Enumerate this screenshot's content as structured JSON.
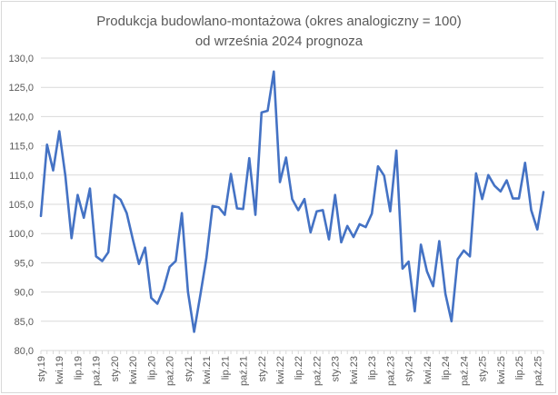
{
  "chart_data": {
    "type": "line",
    "title": "Produkcja budowlano-montażowa (okres analogiczny = 100)",
    "subtitle": "od września 2024 prognoza",
    "xlabel": "",
    "ylabel": "",
    "ylim": [
      80,
      130
    ],
    "yticks": [
      "80,0",
      "85,0",
      "90,0",
      "95,0",
      "100,0",
      "105,0",
      "110,0",
      "115,0",
      "120,0",
      "125,0",
      "130,0"
    ],
    "grid": true,
    "legend": "none",
    "x_start": "2019-01",
    "x_end": "2025-12",
    "xtick_labels": [
      "sty.19",
      "kwi.19",
      "lip.19",
      "paź.19",
      "sty.20",
      "kwi.20",
      "lip.20",
      "paź.20",
      "sty.21",
      "kwi.21",
      "lip.21",
      "paź.21",
      "sty.22",
      "kwi.22",
      "lip.22",
      "paź.22",
      "sty.23",
      "kwi.23",
      "lip.23",
      "paź.23",
      "sty.24",
      "kwi.24",
      "lip.24",
      "paź.24",
      "sty.25",
      "kwi.25",
      "lip.25",
      "paź.25"
    ],
    "series": [
      {
        "color": "#4472c4",
        "values": [
          103.0,
          115.2,
          110.8,
          117.5,
          109.8,
          99.2,
          106.6,
          102.7,
          107.7,
          96.1,
          95.3,
          96.8,
          106.6,
          105.8,
          103.5,
          99.0,
          94.8,
          97.6,
          89.0,
          88.0,
          90.5,
          94.3,
          95.3,
          103.5,
          90.0,
          83.2,
          89.4,
          95.8,
          104.7,
          104.5,
          103.2,
          110.2,
          104.3,
          104.2,
          112.9,
          103.2,
          120.7,
          121.0,
          127.7,
          108.8,
          113.0,
          105.9,
          104.0,
          105.9,
          100.2,
          103.8,
          104.0,
          99.0,
          106.6,
          98.5,
          101.3,
          99.4,
          101.6,
          101.1,
          103.4,
          111.5,
          109.9,
          103.8,
          114.2,
          94.0,
          95.2,
          86.7,
          98.1,
          93.5,
          91.0,
          98.7,
          89.7,
          85.0,
          95.6,
          97.1,
          96.1,
          110.3,
          105.9,
          110.0,
          108.2,
          107.2,
          109.1,
          106.0,
          106.0,
          112.1,
          104.0,
          100.7,
          107.1
        ]
      }
    ]
  }
}
